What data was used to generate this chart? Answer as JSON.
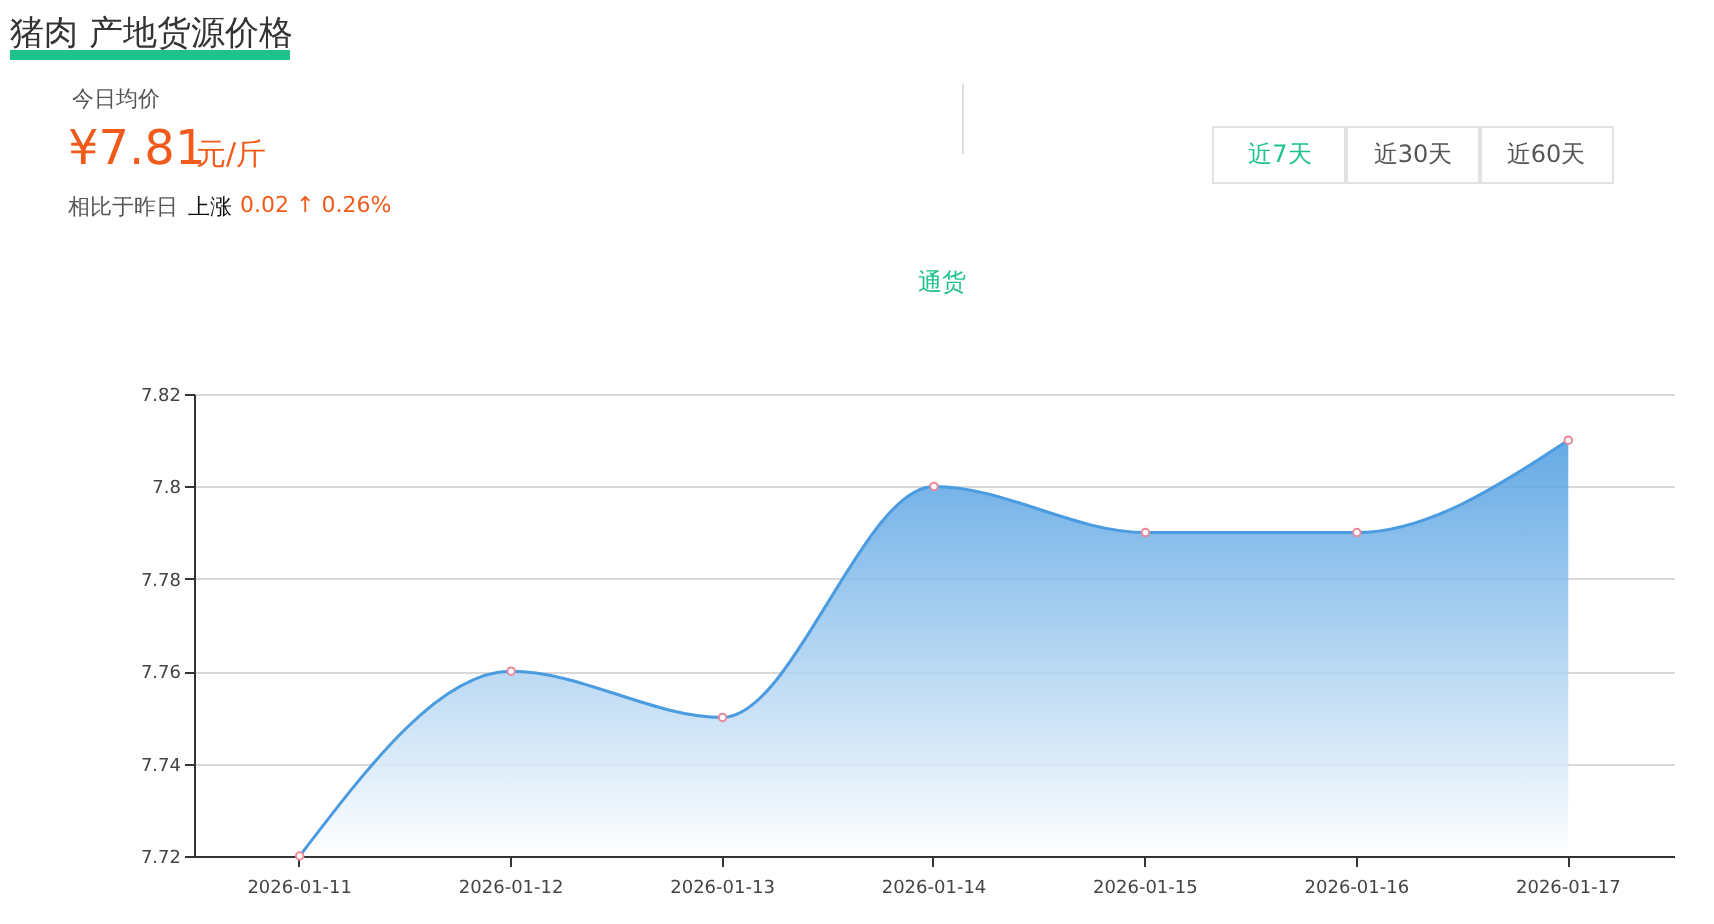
{
  "chart_data": {
    "type": "area",
    "title": "猪肉 产地货源价格",
    "annotations": [
      "今日均价",
      "¥7.81",
      "元/斤",
      "相比于昨日",
      "上涨",
      "0.02 ↑ 0.26%",
      "近7天",
      "近30天",
      "近60天"
    ],
    "categories": [
      "2026-01-11",
      "2026-01-12",
      "2026-01-13",
      "2026-01-14",
      "2026-01-15",
      "2026-01-16",
      "2026-01-17"
    ],
    "series": [
      {
        "name": "通货",
        "color": "#4a9be0",
        "values": [
          7.72,
          7.76,
          7.75,
          7.8,
          7.79,
          7.79,
          7.81
        ]
      }
    ],
    "ylim": [
      7.72,
      7.82
    ],
    "yticks": [
      7.72,
      7.74,
      7.76,
      7.78,
      7.8,
      7.82
    ],
    "grid": "y",
    "legend": "top",
    "marker": "circle"
  }
}
